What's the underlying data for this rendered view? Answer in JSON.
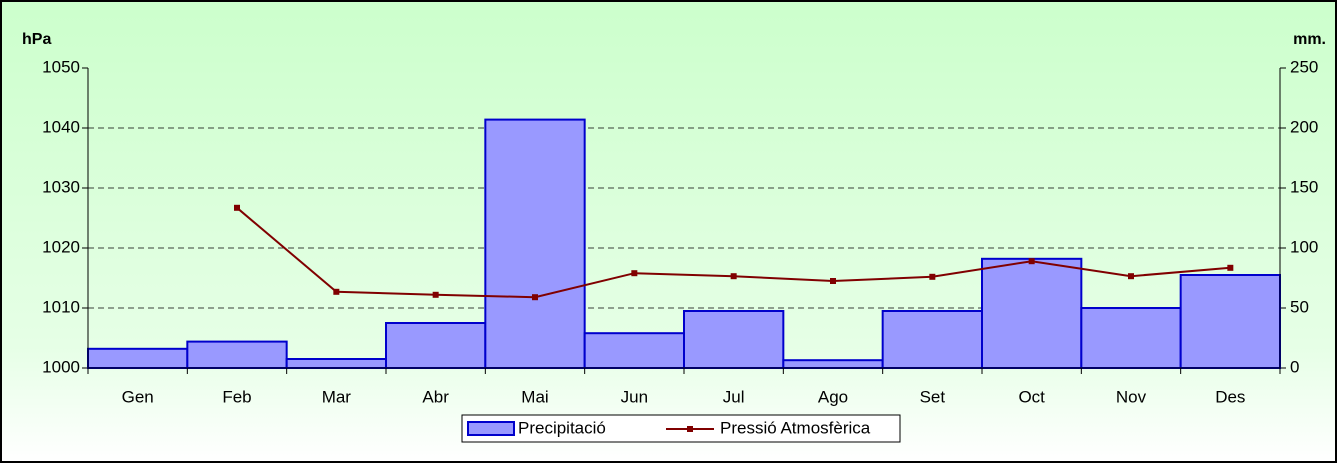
{
  "chart_data": {
    "type": "bar_line",
    "y_label": "hPa",
    "y2_label": "mm.",
    "categories": [
      "Gen",
      "Feb",
      "Mar",
      "Abr",
      "Mai",
      "Jun",
      "Jul",
      "Ago",
      "Set",
      "Oct",
      "Nov",
      "Des"
    ],
    "series": [
      {
        "name": "Precipitació",
        "type": "bar",
        "axis": "y2",
        "color": "#9999ff",
        "edge": "#0000cc",
        "values": [
          16,
          22,
          7.5,
          37.5,
          207,
          29,
          47.5,
          6.5,
          47.5,
          91,
          50,
          77.5
        ]
      },
      {
        "name": "Pressió Atmosfèrica",
        "type": "line",
        "color": "#800000",
        "values": [
          null,
          1026.7,
          1012.7,
          1012.2,
          1011.8,
          1015.8,
          1015.3,
          1014.5,
          1015.2,
          1017.8,
          1015.3,
          1016.7
        ]
      }
    ],
    "ylim": [
      1000,
      1050
    ],
    "yticks": [
      1000,
      1010,
      1020,
      1030,
      1040,
      1050
    ],
    "y2lim": [
      0,
      250
    ],
    "y2ticks": [
      0,
      50,
      100,
      150,
      200,
      250
    ],
    "grid": true
  }
}
